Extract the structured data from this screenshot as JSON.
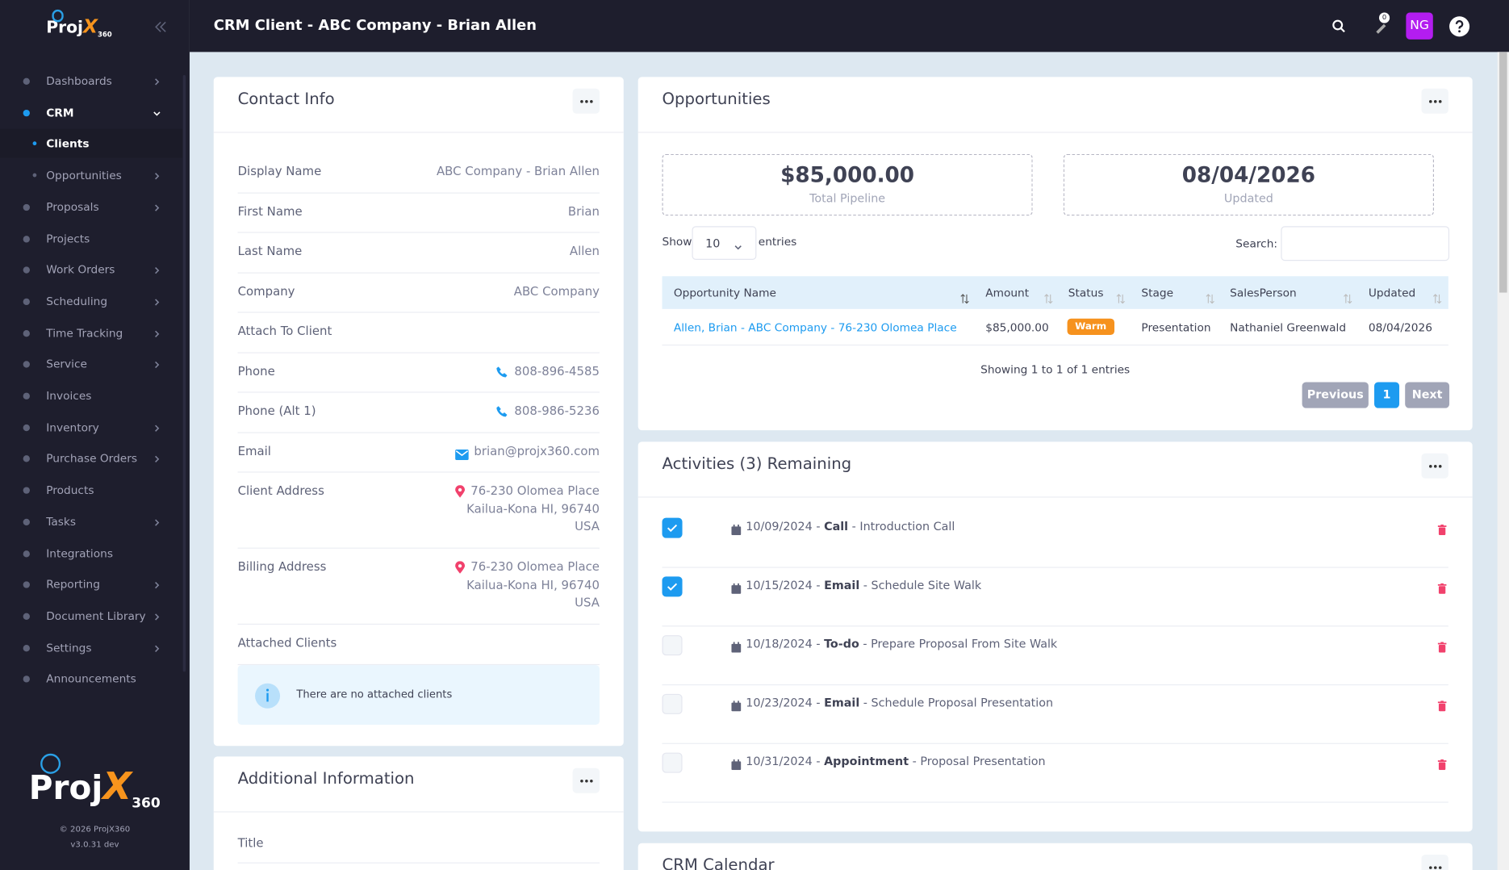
{
  "logo": {
    "word": "Proj",
    "mark": "X",
    "number": "360"
  },
  "sidebar": {
    "items": [
      {
        "label": "Dashboards",
        "expandable": true
      },
      {
        "label": "CRM",
        "active": true,
        "open": true
      },
      {
        "label": "Clients",
        "sub": true,
        "active": true
      },
      {
        "label": "Opportunities",
        "sub": true,
        "expandable": true
      },
      {
        "label": "Proposals",
        "expandable": true
      },
      {
        "label": "Projects"
      },
      {
        "label": "Work Orders",
        "expandable": true
      },
      {
        "label": "Scheduling",
        "expandable": true
      },
      {
        "label": "Time Tracking",
        "expandable": true
      },
      {
        "label": "Service",
        "expandable": true
      },
      {
        "label": "Invoices"
      },
      {
        "label": "Inventory",
        "expandable": true
      },
      {
        "label": "Purchase Orders",
        "expandable": true
      },
      {
        "label": "Products"
      },
      {
        "label": "Tasks",
        "expandable": true
      },
      {
        "label": "Integrations"
      },
      {
        "label": "Reporting",
        "expandable": true
      },
      {
        "label": "Document Library",
        "expandable": true
      },
      {
        "label": "Settings",
        "expandable": true
      },
      {
        "label": "Announcements"
      }
    ],
    "copyright": "© 2026 ProjX360",
    "version": "v3.0.31 dev"
  },
  "header": {
    "title": "CRM Client - ABC Company - Brian Allen",
    "notifications": "0",
    "user_initials": "NG"
  },
  "contact_info": {
    "title": "Contact Info",
    "fields": [
      {
        "label": "Display Name",
        "lines": [
          "ABC Company - Brian Allen"
        ]
      },
      {
        "label": "First Name",
        "lines": [
          "Brian"
        ]
      },
      {
        "label": "Last Name",
        "lines": [
          "Allen"
        ]
      },
      {
        "label": "Company",
        "lines": [
          "ABC Company"
        ]
      },
      {
        "label": "Attach To Client"
      },
      {
        "label": "Phone",
        "lines": [
          "808-896-4585"
        ],
        "icon": "phone"
      },
      {
        "label": "Phone (Alt 1)",
        "lines": [
          "808-986-5236"
        ],
        "icon": "phone"
      },
      {
        "label": "Email",
        "lines": [
          "brian@projx360.com"
        ],
        "icon": "email"
      },
      {
        "label": "Client Address",
        "lines": [
          "76-230 Olomea Place",
          "Kailua-Kona HI, 96740",
          "USA"
        ],
        "icon": "pin"
      },
      {
        "label": "Billing Address",
        "lines": [
          "76-230 Olomea Place",
          "Kailua-Kona HI, 96740",
          "USA"
        ],
        "icon": "pin"
      },
      {
        "label": "Attached Clients"
      }
    ],
    "notice": "There are no attached clients"
  },
  "opportunities": {
    "title": "Opportunities",
    "total": "$85,000.00",
    "total_label": "Total Pipeline",
    "updated": "08/04/2026",
    "updated_label": "Updated",
    "show_label": "Show",
    "page_size": "10",
    "entries_label": "entries",
    "search_label": "Search:",
    "columns": [
      "Opportunity Name",
      "Amount",
      "Status",
      "Stage",
      "SalesPerson",
      "Updated"
    ],
    "rows": [
      [
        "Allen, Brian - ABC Company - 76-230 Olomea Place",
        "$85,000.00",
        "Warm",
        "Presentation",
        "Nathaniel Greenwald",
        "08/04/2026"
      ]
    ],
    "info": "Showing 1 to 1 of 1 entries",
    "previous": "Previous",
    "page": "1",
    "next": "Next"
  },
  "activities": {
    "title": "Activities (3) Remaining",
    "separator": "-",
    "items": [
      {
        "date": "10/09/2024",
        "type": "Call",
        "description": "Introduction Call",
        "done": true
      },
      {
        "date": "10/15/2024",
        "type": "Email",
        "description": "Schedule Site Walk",
        "done": true
      },
      {
        "date": "10/18/2024",
        "type": "To-do",
        "description": "Prepare Proposal From Site Walk",
        "done": false
      },
      {
        "date": "10/23/2024",
        "type": "Email",
        "description": "Schedule Proposal Presentation",
        "done": false
      },
      {
        "date": "10/31/2024",
        "type": "Appointment",
        "description": "Proposal Presentation",
        "done": false
      }
    ]
  },
  "additional_info": {
    "title": "Additional Information",
    "fields": [
      "Title"
    ]
  },
  "calendar": {
    "title": "CRM Calendar"
  }
}
